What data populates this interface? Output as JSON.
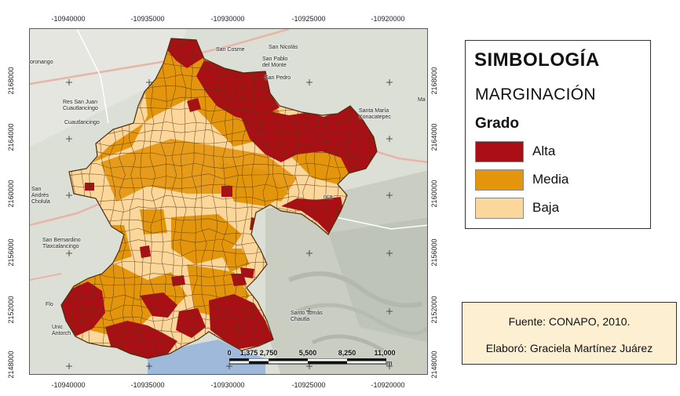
{
  "map": {
    "top_ticks": [
      "-10940000",
      "-10935000",
      "-10930000",
      "-10925000",
      "-10920000"
    ],
    "bottom_ticks": [
      "-10940000",
      "-10935000",
      "-10930000",
      "-10925000",
      "-10920000"
    ],
    "left_ticks": [
      "2168000",
      "2164000",
      "2160000",
      "2156000",
      "2152000",
      "2148000"
    ],
    "right_ticks": [
      "2168000",
      "2164000",
      "2160000",
      "2156000",
      "2152000",
      "2148000"
    ],
    "places": [
      "San Cosme",
      "San Nicolás",
      "San Pablo\ndel Monte",
      "San Pedro",
      "Santa María\nXonacatepec",
      "oronango",
      "Res San Juan\nCuautlancingo",
      "Cuautlancingo",
      "San\nAndrés\nCholula",
      "San Bernardino\nTlaxcalancingo",
      "Santo Tomás\nChautla",
      "Unic\nAntorch",
      "Flo",
      "nca",
      "Ma"
    ],
    "scalebar": {
      "labels": [
        "0",
        "1,375",
        "2,750",
        "5,500",
        "8,250",
        "11,000"
      ],
      "unit": "m"
    },
    "colors": {
      "alta": "#a90f14",
      "media": "#e3960c",
      "baja": "#fcd79c",
      "basemap": "#d9dcd4",
      "boundary": "#5b3a12"
    }
  },
  "legend": {
    "title": "SIMBOLOGÍA",
    "subtitle": "MARGINACIÓN",
    "group_label": "Grado",
    "classes": [
      {
        "label": "Alta",
        "color": "#a90f14"
      },
      {
        "label": "Media",
        "color": "#e3960c"
      },
      {
        "label": "Baja",
        "color": "#fcd79c"
      }
    ]
  },
  "credits": {
    "source": "Fuente: CONAPO, 2010.",
    "author": "Elaboró: Graciela Martínez Juárez"
  }
}
